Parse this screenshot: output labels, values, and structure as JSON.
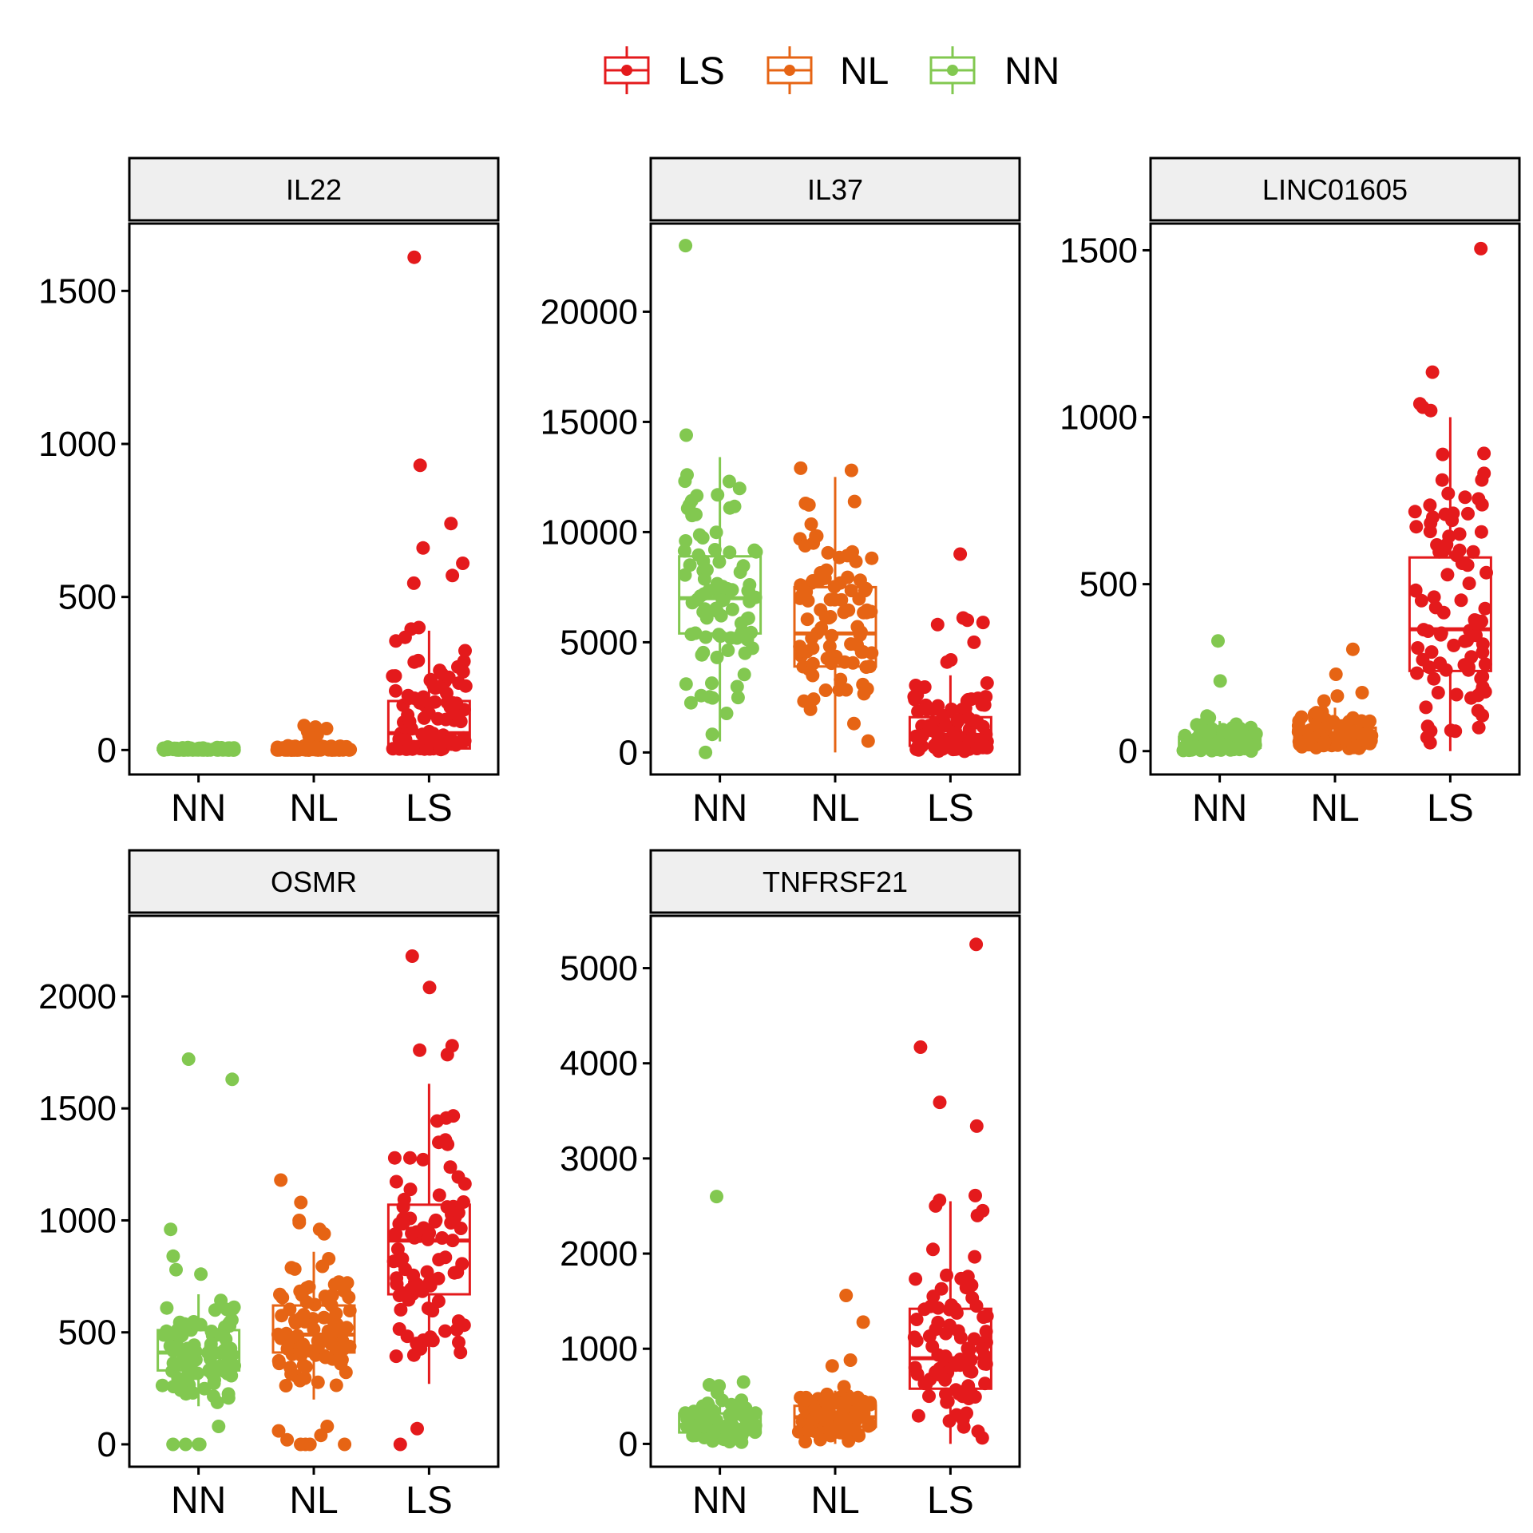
{
  "chart_data": {
    "type": "box",
    "groups": [
      "NN",
      "NL",
      "LS"
    ],
    "legend": {
      "position": "top",
      "entries": [
        {
          "label": "LS",
          "color": "#E41A1C"
        },
        {
          "label": "NL",
          "color": "#E66414"
        },
        {
          "label": "NN",
          "color": "#82C850"
        }
      ]
    },
    "colors": {
      "NN": "#82C850",
      "NL": "#E66414",
      "LS": "#E41A1C"
    },
    "panels": [
      {
        "title": "IL22",
        "ylim": [
          -80,
          1720
        ],
        "yticks": [
          0,
          500,
          1000,
          1500
        ],
        "boxes": {
          "NN": {
            "q1": 0,
            "median": 2,
            "q3": 5,
            "whisker_low": 0,
            "whisker_high": 10
          },
          "NL": {
            "q1": 0,
            "median": 3,
            "q3": 8,
            "whisker_low": 0,
            "whisker_high": 15
          },
          "LS": {
            "q1": 5,
            "median": 55,
            "q3": 160,
            "whisker_low": 0,
            "whisker_high": 390
          }
        },
        "outliers": {
          "NN": [],
          "NL": [
            80,
            75,
            70,
            60,
            50,
            45
          ],
          "LS": [
            1610,
            930,
            740,
            660,
            610,
            570,
            545,
            400,
            395
          ]
        }
      },
      {
        "title": "IL37",
        "ylim": [
          -1000,
          24000
        ],
        "yticks": [
          0,
          5000,
          10000,
          15000,
          20000
        ],
        "boxes": {
          "NN": {
            "q1": 5400,
            "median": 7000,
            "q3": 8900,
            "whisker_low": 500,
            "whisker_high": 13400
          },
          "NL": {
            "q1": 3900,
            "median": 5400,
            "q3": 7500,
            "whisker_low": 0,
            "whisker_high": 12500
          },
          "LS": {
            "q1": 300,
            "median": 800,
            "q3": 1600,
            "whisker_low": 0,
            "whisker_high": 3500
          }
        },
        "outliers": {
          "NN": [
            23000,
            14400,
            0
          ],
          "NL": [
            12900,
            12800
          ],
          "LS": [
            9000,
            6100,
            6000,
            5900,
            5800,
            5000,
            4200,
            4100
          ]
        }
      },
      {
        "title": "LINC01605",
        "ylim": [
          -70,
          1580
        ],
        "yticks": [
          0,
          500,
          1000,
          1500
        ],
        "boxes": {
          "NN": {
            "q1": 10,
            "median": 22,
            "q3": 42,
            "whisker_low": 0,
            "whisker_high": 90
          },
          "NL": {
            "q1": 25,
            "median": 45,
            "q3": 70,
            "whisker_low": 0,
            "whisker_high": 130
          },
          "LS": {
            "q1": 240,
            "median": 365,
            "q3": 580,
            "whisker_low": 0,
            "whisker_high": 1000
          }
        },
        "outliers": {
          "NN": [
            330,
            210,
            105,
            100
          ],
          "NL": [
            305,
            230,
            175,
            165,
            150
          ],
          "LS": [
            1505,
            1135,
            1040,
            1030,
            1020
          ]
        }
      },
      {
        "title": "OSMR",
        "ylim": [
          -100,
          2360
        ],
        "yticks": [
          0,
          500,
          1000,
          1500,
          2000
        ],
        "boxes": {
          "NN": {
            "q1": 330,
            "median": 410,
            "q3": 510,
            "whisker_low": 170,
            "whisker_high": 670
          },
          "NL": {
            "q1": 410,
            "median": 490,
            "q3": 620,
            "whisker_low": 200,
            "whisker_high": 860
          },
          "LS": {
            "q1": 670,
            "median": 910,
            "q3": 1070,
            "whisker_low": 270,
            "whisker_high": 1610
          }
        },
        "outliers": {
          "NN": [
            1720,
            1630,
            960,
            840,
            780,
            760,
            80,
            0,
            0,
            0,
            0
          ],
          "NL": [
            1180,
            1080,
            1000,
            990,
            960,
            940,
            80,
            60,
            40,
            20,
            0,
            0,
            0,
            0
          ],
          "LS": [
            2180,
            2040,
            1780,
            1760,
            1740,
            70,
            0
          ]
        }
      },
      {
        "title": "TNFRSF21",
        "ylim": [
          -240,
          5550
        ],
        "yticks": [
          0,
          1000,
          2000,
          3000,
          4000,
          5000
        ],
        "boxes": {
          "NN": {
            "q1": 120,
            "median": 200,
            "q3": 320,
            "whisker_low": 0,
            "whisker_high": 580
          },
          "NL": {
            "q1": 180,
            "median": 280,
            "q3": 400,
            "whisker_low": 0,
            "whisker_high": 560
          },
          "LS": {
            "q1": 580,
            "median": 900,
            "q3": 1420,
            "whisker_low": 0,
            "whisker_high": 2550
          }
        },
        "outliers": {
          "NN": [
            2600,
            650,
            620,
            610
          ],
          "NL": [
            1560,
            1280,
            880,
            820,
            600
          ],
          "LS": [
            5250,
            4170,
            3590,
            3340,
            2610,
            2560,
            2450,
            2400
          ]
        }
      }
    ]
  }
}
